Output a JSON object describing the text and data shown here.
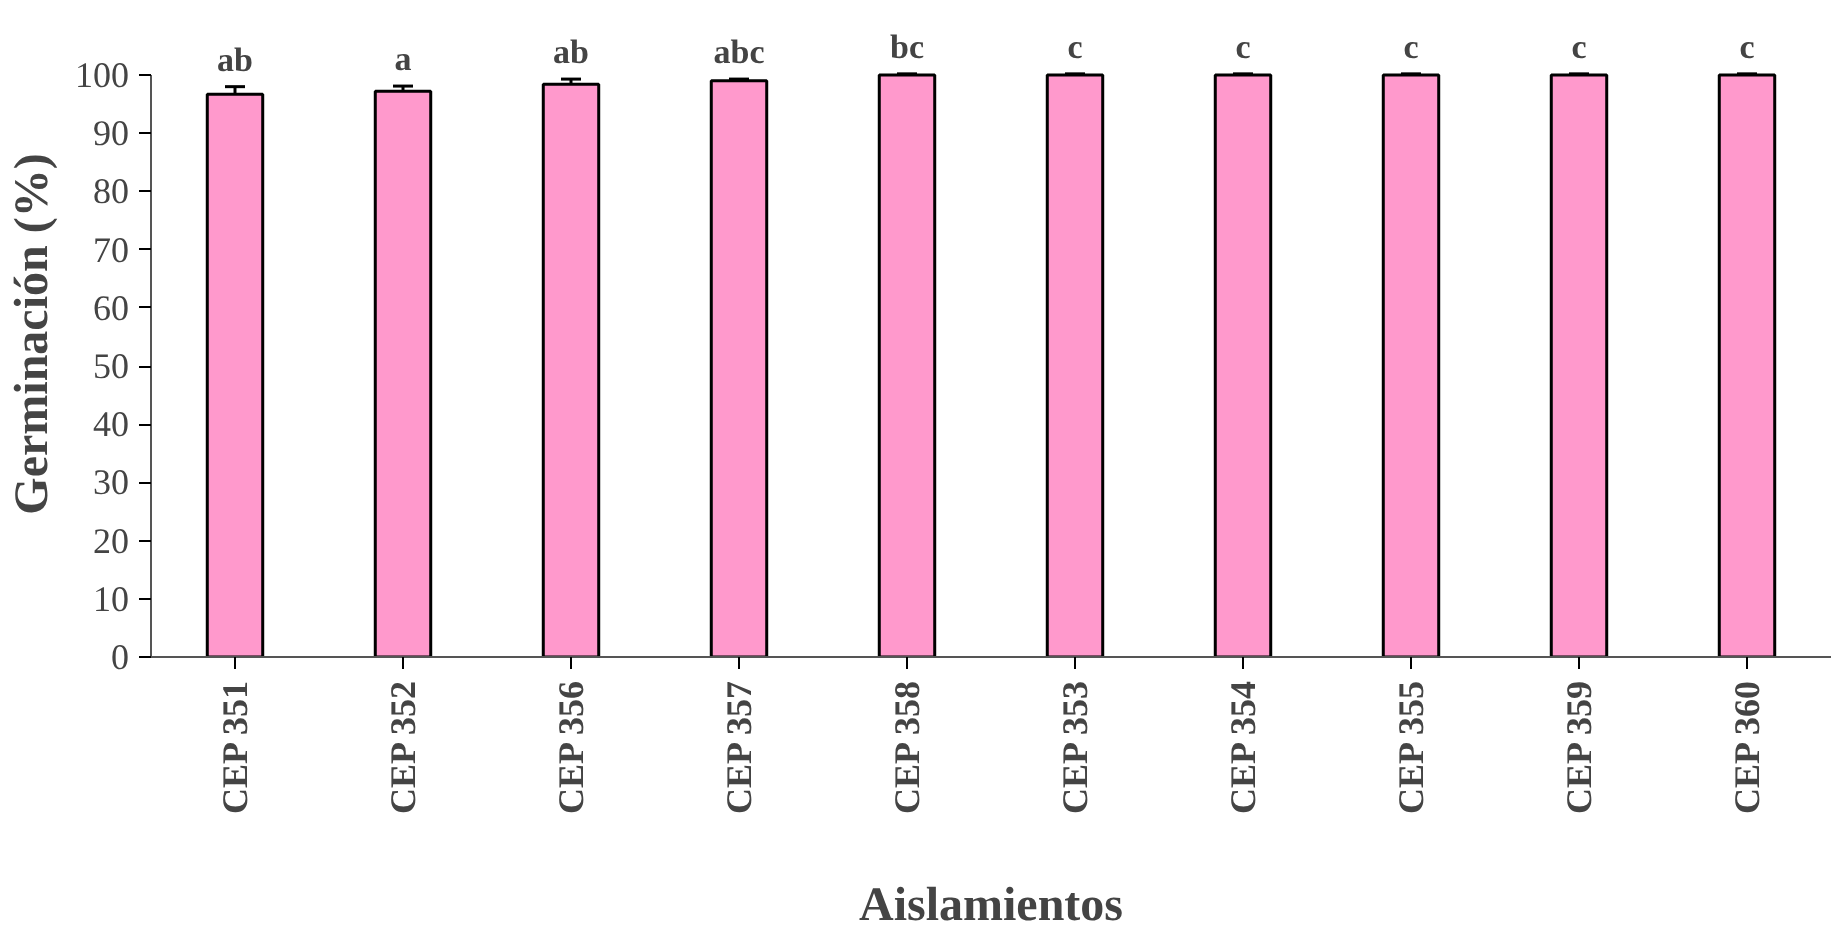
{
  "chart_data": {
    "type": "bar",
    "xlabel": "Aislamientos",
    "ylabel": "Germinación (%)",
    "categories": [
      "CEP 351",
      "CEP 352",
      "CEP 356",
      "CEP 357",
      "CEP 358",
      "CEP 353",
      "CEP 354",
      "CEP 355",
      "CEP 359",
      "CEP 360"
    ],
    "values": [
      96.7,
      97.2,
      98.4,
      99.0,
      100,
      100,
      100,
      100,
      100,
      100
    ],
    "errors": [
      1.3,
      0.9,
      0.9,
      0.3,
      0.2,
      0.2,
      0.2,
      0.2,
      0.2,
      0.2
    ],
    "color": "#ff99cc",
    "ylim": [
      0,
      100
    ],
    "yticks": [
      0,
      10,
      20,
      30,
      40,
      50,
      60,
      70,
      80,
      90,
      100
    ],
    "grid": false,
    "annotations": [
      {
        "text": "ab",
        "x": "CEP 351",
        "y": 98
      },
      {
        "text": "a",
        "x": "CEP 352",
        "y": 98.1
      },
      {
        "text": "ab",
        "x": "CEP 356",
        "y": 99.3
      },
      {
        "text": "abc",
        "x": "CEP 357",
        "y": 99.3
      },
      {
        "text": "bc",
        "x": "CEP 358",
        "y": 100.2
      },
      {
        "text": "c",
        "x": "CEP 353",
        "y": 100.2
      },
      {
        "text": "c",
        "x": "CEP 354",
        "y": 100.2
      },
      {
        "text": "c",
        "x": "CEP 355",
        "y": 100.2
      },
      {
        "text": "c",
        "x": "CEP 359",
        "y": 100.2
      },
      {
        "text": "c",
        "x": "CEP 360",
        "y": 100.2
      }
    ]
  }
}
